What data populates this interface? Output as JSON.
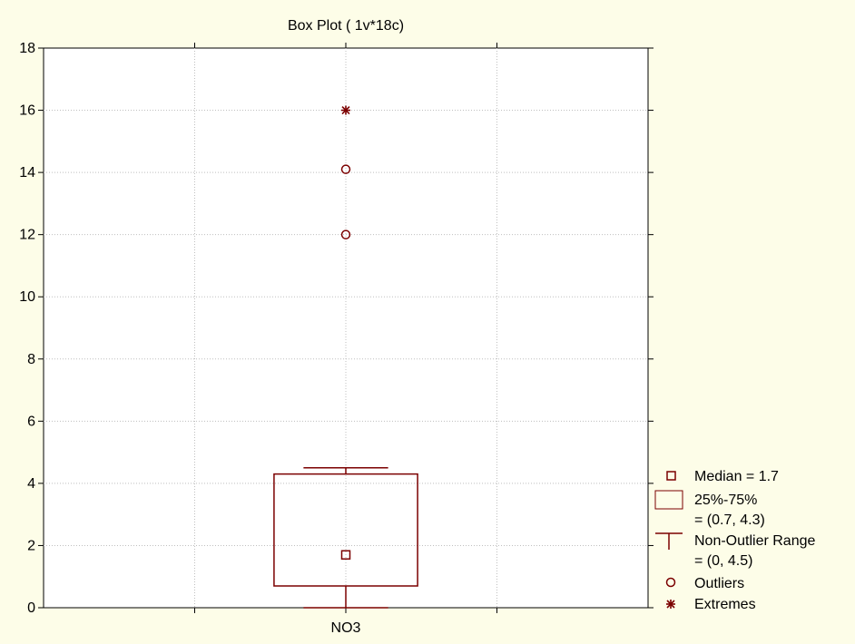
{
  "chart_data": {
    "type": "box",
    "title": "Box Plot ( 1v*18c)",
    "xlabel": "",
    "ylabel": "",
    "ylim": [
      0,
      18
    ],
    "yticks": [
      0,
      2,
      4,
      6,
      8,
      10,
      12,
      14,
      16,
      18
    ],
    "categories": [
      "NO3"
    ],
    "grid": true,
    "legend_position": "right",
    "colors": {
      "background": "#fdfde8",
      "plot_area": "#ffffff",
      "series": "#7b0000",
      "grid": "#bfbfbf"
    },
    "boxes": [
      {
        "category": "NO3",
        "median": 1.7,
        "q1": 0.7,
        "q3": 4.3,
        "whisker_low": 0,
        "whisker_high": 4.5,
        "outliers": [
          12,
          14.1
        ],
        "extremes": [
          16
        ]
      }
    ],
    "legend": {
      "median": "Median = 1.7",
      "box_line1": "25%-75%",
      "box_line2": "= (0.7, 4.3)",
      "range_line1": "Non-Outlier Range",
      "range_line2": "= (0, 4.5)",
      "outliers": "Outliers",
      "extremes": "Extremes"
    }
  }
}
